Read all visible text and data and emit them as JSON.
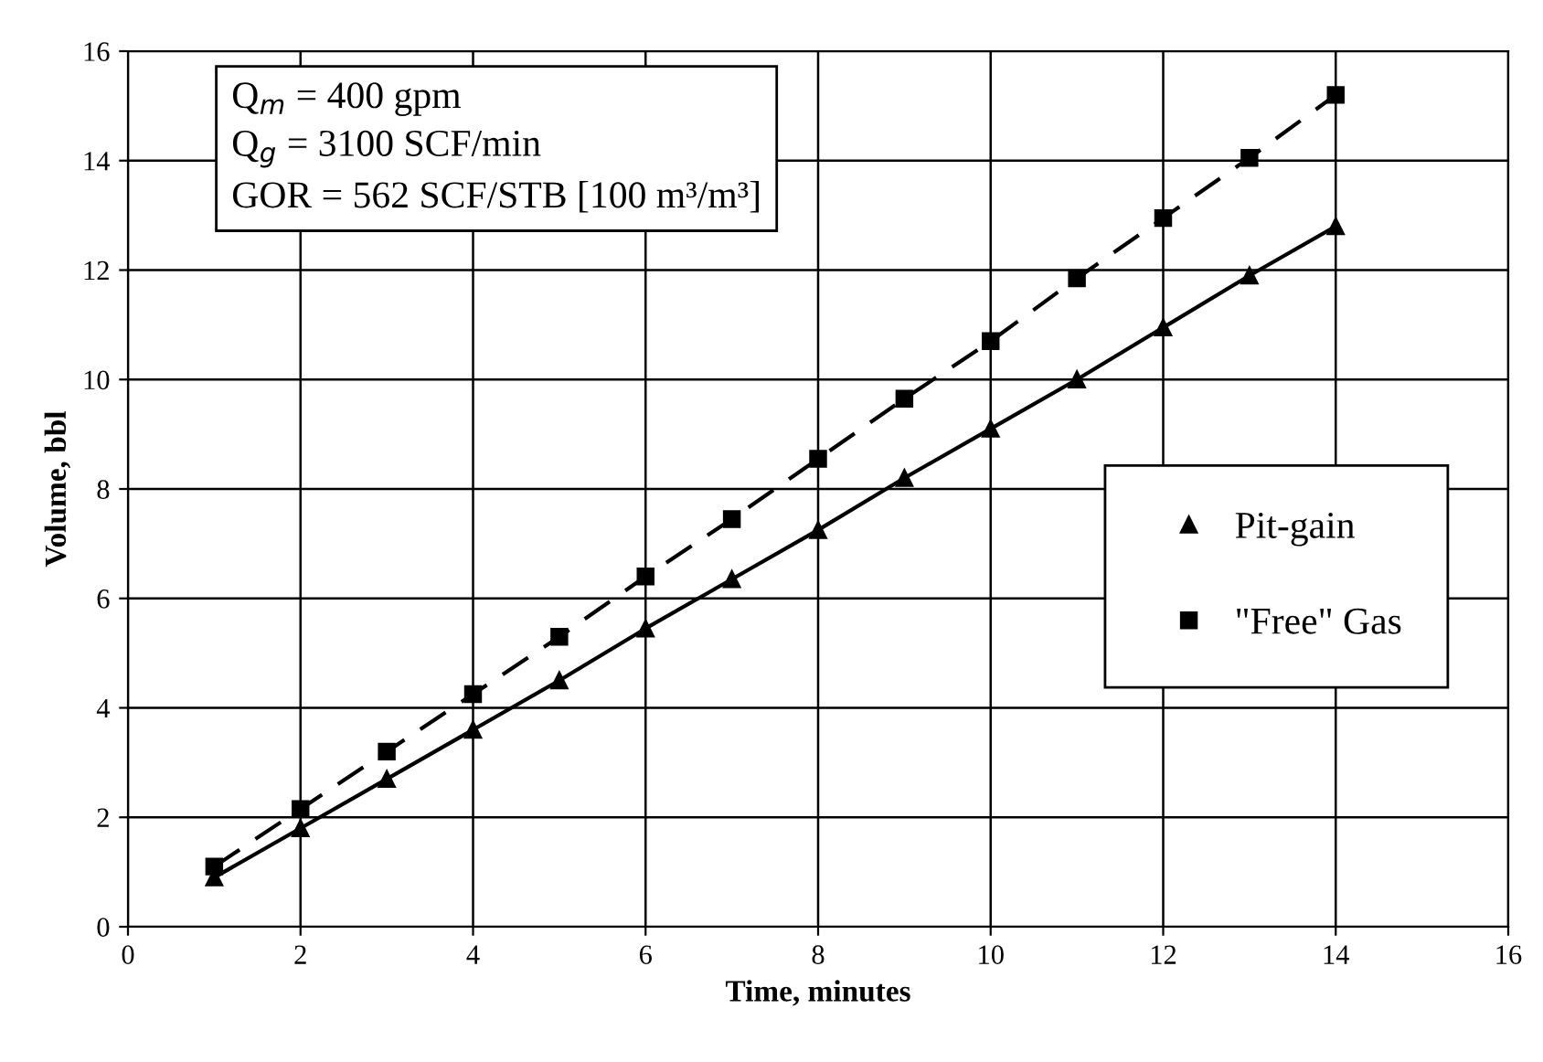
{
  "chart_data": {
    "type": "line",
    "xlabel": "Time, minutes",
    "ylabel": "Volume, bbl",
    "x": [
      1,
      2,
      3,
      4,
      5,
      6,
      7,
      8,
      9,
      10,
      11,
      12,
      13,
      14
    ],
    "series": [
      {
        "name": "Pit-gain",
        "color": "#000000",
        "marker": "triangle",
        "line_style": "solid",
        "values": [
          0.9,
          1.8,
          2.7,
          3.6,
          4.5,
          5.45,
          6.35,
          7.25,
          8.2,
          9.1,
          10.0,
          10.95,
          11.9,
          12.8
        ]
      },
      {
        "name": "\"Free\" Gas",
        "color": "#000000",
        "marker": "square",
        "line_style": "dashed",
        "values": [
          1.1,
          2.15,
          3.2,
          4.25,
          5.3,
          6.4,
          7.45,
          8.55,
          9.65,
          10.7,
          11.85,
          12.95,
          14.05,
          15.2
        ]
      }
    ],
    "annotations": [
      "Q$_{m}$ = 400 gpm\nQ$_{g}$ = 3100 SCF/min\nGOR = 562 SCF/STB [100 m³/m³]"
    ],
    "xlim": [
      0,
      16
    ],
    "ylim": [
      0,
      16
    ],
    "xticks": [
      0,
      2,
      4,
      6,
      8,
      10,
      12,
      14,
      16
    ],
    "yticks": [
      0,
      2,
      4,
      6,
      8,
      10,
      12,
      14,
      16
    ],
    "grid": true,
    "legend": "right"
  }
}
